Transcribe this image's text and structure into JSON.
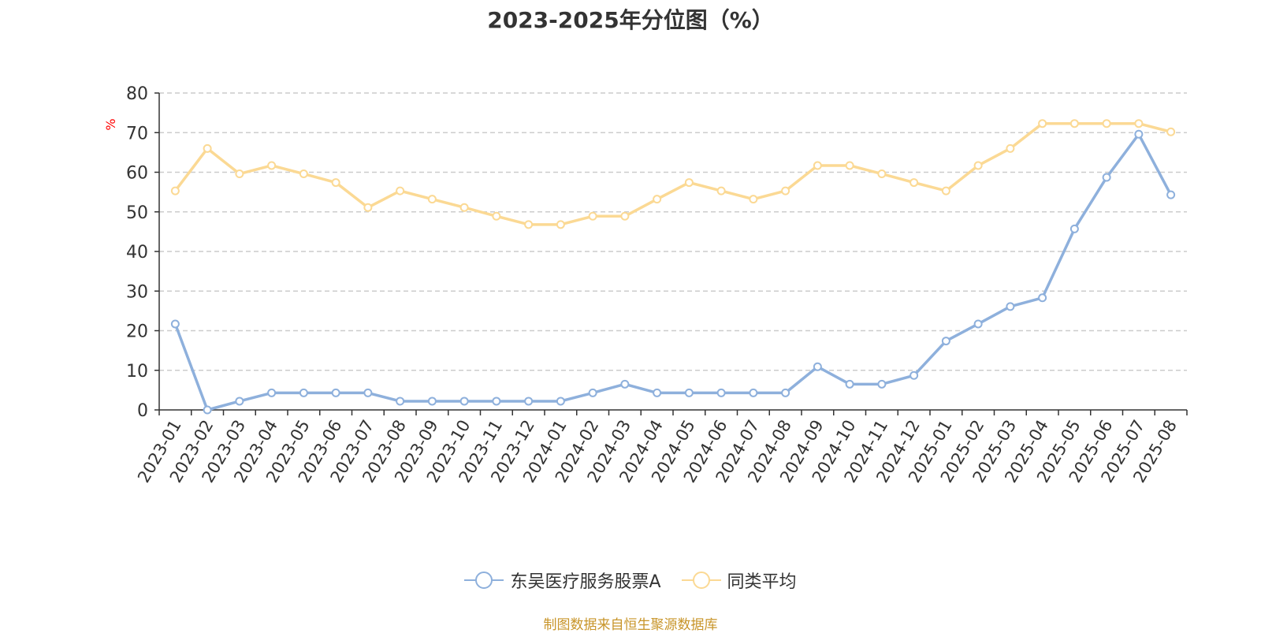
{
  "title": "2023-2025年分位图（%）",
  "source_note": "制图数据来自恒生聚源数据库",
  "colors": {
    "series_a": "#8eb0dc",
    "series_b": "#fbd994",
    "axis_unit": "#ff0000",
    "source_note": "#c8952a",
    "grid": "#cccccc",
    "axis": "#333333"
  },
  "chart_data": {
    "type": "line",
    "title": "2023-2025年分位图（%）",
    "xlabel": "",
    "ylabel": "%",
    "ylim": [
      0,
      80
    ],
    "yticks": [
      0,
      10,
      20,
      30,
      40,
      50,
      60,
      70,
      80
    ],
    "grid": true,
    "legend_position": "bottom",
    "categories": [
      "2023-01",
      "2023-02",
      "2023-03",
      "2023-04",
      "2023-05",
      "2023-06",
      "2023-07",
      "2023-08",
      "2023-09",
      "2023-10",
      "2023-11",
      "2023-12",
      "2024-01",
      "2024-02",
      "2024-03",
      "2024-04",
      "2024-05",
      "2024-06",
      "2024-07",
      "2024-08",
      "2024-09",
      "2024-10",
      "2024-11",
      "2024-12",
      "2025-01",
      "2025-02",
      "2025-03",
      "2025-04",
      "2025-05",
      "2025-06",
      "2025-07",
      "2025-08"
    ],
    "series": [
      {
        "name": "东吴医疗服务股票A",
        "values": [
          21.7,
          0,
          2.2,
          4.3,
          4.3,
          4.3,
          4.3,
          2.2,
          2.2,
          2.2,
          2.2,
          2.2,
          2.2,
          4.3,
          6.5,
          4.3,
          4.3,
          4.3,
          4.3,
          4.3,
          10.9,
          6.5,
          6.5,
          8.7,
          17.4,
          21.7,
          26.1,
          28.3,
          45.7,
          58.7,
          69.6,
          54.3
        ]
      },
      {
        "name": "同类平均",
        "values": [
          55.3,
          66.0,
          59.6,
          61.7,
          59.6,
          57.4,
          51.1,
          55.3,
          53.2,
          51.1,
          48.9,
          46.8,
          46.8,
          48.9,
          48.9,
          53.2,
          57.4,
          55.3,
          53.2,
          55.3,
          61.7,
          61.7,
          59.6,
          57.4,
          55.3,
          61.7,
          66.0,
          72.3,
          72.3,
          72.3,
          72.3,
          70.2
        ]
      }
    ]
  }
}
